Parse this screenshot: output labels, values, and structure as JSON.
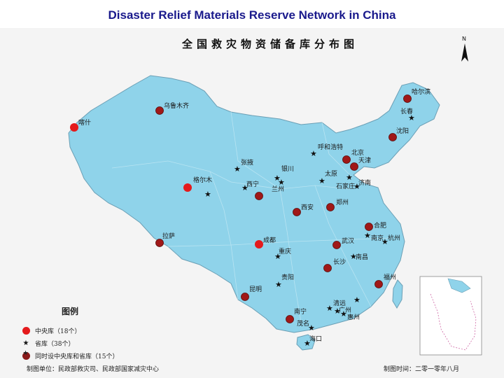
{
  "slide_title": "Disaster Relief Materials Reserve Network in China",
  "map_title": "全国救灾物资储备库分布图",
  "legend": {
    "title": "图例",
    "central": "中央库（18个）",
    "provincial": "省库（38个）",
    "both": "同时设中央库和省库（15个）"
  },
  "footer": {
    "producer": "制图单位：民政部救灾司、民政部国家减灾中心",
    "date": "制图时间：二零一零年八月"
  },
  "colors": {
    "land": "#8fd3ea",
    "central": "#e41a1c",
    "both": "#8b1a1a",
    "frame": "#f4f4f4"
  },
  "cities": [
    {
      "name": "哈尔滨",
      "type": "both"
    },
    {
      "name": "长春",
      "type": "provincial"
    },
    {
      "name": "沈阳",
      "type": "both"
    },
    {
      "name": "乌鲁木齐",
      "type": "both"
    },
    {
      "name": "喀什",
      "type": "central"
    },
    {
      "name": "呼和浩特",
      "type": "provincial"
    },
    {
      "name": "北京",
      "type": "both"
    },
    {
      "name": "天津",
      "type": "both"
    },
    {
      "name": "张掖",
      "type": "provincial"
    },
    {
      "name": "银川",
      "type": "provincial"
    },
    {
      "name": "太原",
      "type": "provincial"
    },
    {
      "name": "济南",
      "type": "provincial"
    },
    {
      "name": "石家庄",
      "type": "provincial"
    },
    {
      "name": "格尔木",
      "type": "central"
    },
    {
      "name": "西宁",
      "type": "provincial"
    },
    {
      "name": "兰州",
      "type": "provincial"
    },
    {
      "name": "郑州",
      "type": "both"
    },
    {
      "name": "西安",
      "type": "both"
    },
    {
      "name": "合肥",
      "type": "both"
    },
    {
      "name": "拉萨",
      "type": "both"
    },
    {
      "name": "成都",
      "type": "central"
    },
    {
      "name": "武汉",
      "type": "both"
    },
    {
      "name": "南京",
      "type": "provincial"
    },
    {
      "name": "杭州",
      "type": "provincial"
    },
    {
      "name": "重庆",
      "type": "provincial"
    },
    {
      "name": "南昌",
      "type": "provincial"
    },
    {
      "name": "长沙",
      "type": "both"
    },
    {
      "name": "贵阳",
      "type": "provincial"
    },
    {
      "name": "福州",
      "type": "both"
    },
    {
      "name": "昆明",
      "type": "both"
    },
    {
      "name": "清远",
      "type": "provincial"
    },
    {
      "name": "广州",
      "type": "provincial"
    },
    {
      "name": "惠州",
      "type": "provincial"
    },
    {
      "name": "海口",
      "type": "provincial"
    },
    {
      "name": "南宁",
      "type": "both"
    },
    {
      "name": "茂名",
      "type": "provincial"
    }
  ]
}
